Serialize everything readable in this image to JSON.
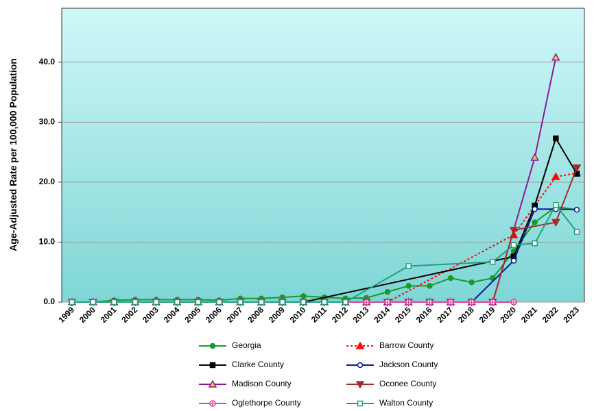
{
  "chart_data": {
    "type": "line",
    "y_label": "Age-Adjusted Rate per 100,000 Population",
    "categories": [
      "1999",
      "2000",
      "2001",
      "2002",
      "2003",
      "2004",
      "2005",
      "2006",
      "2007",
      "2008",
      "2009",
      "2010",
      "2011",
      "2012",
      "2013",
      "2014",
      "2015",
      "2016",
      "2017",
      "2018",
      "2019",
      "2020",
      "2021",
      "2022",
      "2023"
    ],
    "ylim": [
      0,
      49
    ],
    "yticks": [
      {
        "value": 0,
        "label": "0.0"
      },
      {
        "value": 10,
        "label": "10.0"
      },
      {
        "value": 20,
        "label": "20.0"
      },
      {
        "value": 30,
        "label": "30.0"
      },
      {
        "value": 40,
        "label": "40.0"
      }
    ],
    "grid": true,
    "series": [
      {
        "name": "Georgia",
        "color": "#1a9a2a",
        "marker": "circle",
        "dash": false,
        "values": [
          0,
          0,
          0.3,
          0.4,
          0.4,
          0.4,
          0.4,
          0.3,
          0.6,
          0.6,
          0.8,
          1.0,
          0.8,
          0.6,
          0.7,
          1.7,
          2.7,
          2.7,
          4.0,
          3.3,
          4.0,
          8.5,
          13.3,
          15.9,
          15.4
        ]
      },
      {
        "name": "Barrow County",
        "color": "#ff0000",
        "marker": "triangle",
        "dash": true,
        "values": [
          null,
          null,
          null,
          null,
          null,
          null,
          null,
          null,
          null,
          null,
          null,
          null,
          null,
          null,
          null,
          0,
          null,
          null,
          null,
          null,
          null,
          11.2,
          null,
          20.9,
          21.5
        ]
      },
      {
        "name": "Clarke County",
        "color": "#000000",
        "marker": "square",
        "dash": false,
        "values": [
          null,
          null,
          null,
          null,
          null,
          null,
          null,
          null,
          null,
          null,
          null,
          0,
          null,
          null,
          null,
          null,
          null,
          null,
          null,
          null,
          null,
          7.6,
          16.1,
          27.3,
          21.4
        ]
      },
      {
        "name": "Jackson County",
        "color": "#0a1a9a",
        "marker": "open-circle",
        "dash": false,
        "values": [
          null,
          null,
          null,
          null,
          null,
          null,
          null,
          null,
          null,
          null,
          null,
          null,
          null,
          null,
          null,
          null,
          null,
          null,
          null,
          0,
          null,
          6.9,
          15.5,
          15.5,
          15.4
        ]
      },
      {
        "name": "Madison County",
        "color": "#8a1a9a",
        "marker": "open-triangle",
        "dash": false,
        "values": [
          0,
          0,
          0,
          0,
          0,
          0,
          0,
          0,
          0,
          0,
          0,
          0,
          0,
          0,
          0,
          0,
          0,
          0,
          0,
          0,
          0,
          null,
          24.1,
          40.8,
          null
        ]
      },
      {
        "name": "Oconee County",
        "color": "#a52a2a",
        "marker": "down-triangle",
        "dash": false,
        "values": [
          0,
          0,
          0,
          0,
          0,
          0,
          0,
          0,
          0,
          0,
          0,
          0,
          0,
          0,
          0,
          0,
          0,
          0,
          0,
          0,
          0,
          12.0,
          null,
          13.3,
          22.4
        ]
      },
      {
        "name": "Oglethorpe County",
        "color": "#e0409a",
        "marker": "plus-circle",
        "dash": false,
        "values": [
          0,
          0,
          0,
          0,
          0,
          0,
          0,
          0,
          0,
          0,
          0,
          0,
          0,
          0,
          0,
          0,
          0,
          0,
          0,
          0,
          0,
          0,
          null,
          null,
          null
        ]
      },
      {
        "name": "Walton County",
        "color": "#20a080",
        "marker": "open-square",
        "dash": false,
        "values": [
          0,
          0,
          0,
          0,
          0,
          0,
          0,
          0,
          0,
          0,
          0,
          0,
          0,
          0,
          null,
          null,
          6.0,
          null,
          null,
          null,
          6.7,
          9.5,
          9.8,
          16.2,
          11.7
        ]
      }
    ]
  }
}
